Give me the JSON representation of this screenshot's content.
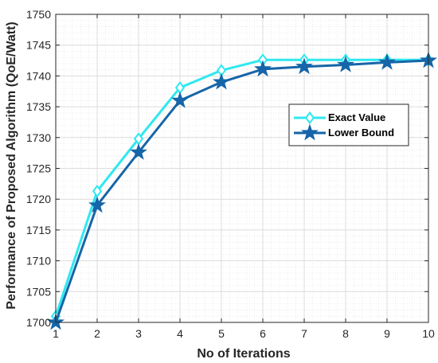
{
  "chart_data": {
    "type": "line",
    "title": "",
    "xlabel": "No of Iterations",
    "ylabel": "Performance of Proposed Algorithm (QoE/Watt)",
    "xlim": [
      1,
      10
    ],
    "ylim": [
      1700,
      1750
    ],
    "x_ticks": [
      1,
      2,
      3,
      4,
      5,
      6,
      7,
      8,
      9,
      10
    ],
    "y_ticks": [
      1700,
      1705,
      1710,
      1715,
      1720,
      1725,
      1730,
      1735,
      1740,
      1745,
      1750
    ],
    "grid": true,
    "legend_position": "right",
    "x": [
      1,
      2,
      3,
      4,
      5,
      6,
      7,
      8,
      9,
      10
    ],
    "series": [
      {
        "name": "Exact Value",
        "color": "#2fe8f0",
        "marker": "diamond",
        "values": [
          1701,
          1721.3,
          1729.8,
          1738.1,
          1740.9,
          1742.6,
          1742.6,
          1742.6,
          1742.6,
          1742.6
        ]
      },
      {
        "name": "Lower Bound",
        "color": "#1565a8",
        "marker": "star",
        "values": [
          1700,
          1719,
          1727.6,
          1736.0,
          1739.0,
          1741.1,
          1741.5,
          1741.8,
          1742.2,
          1742.5
        ]
      }
    ]
  }
}
